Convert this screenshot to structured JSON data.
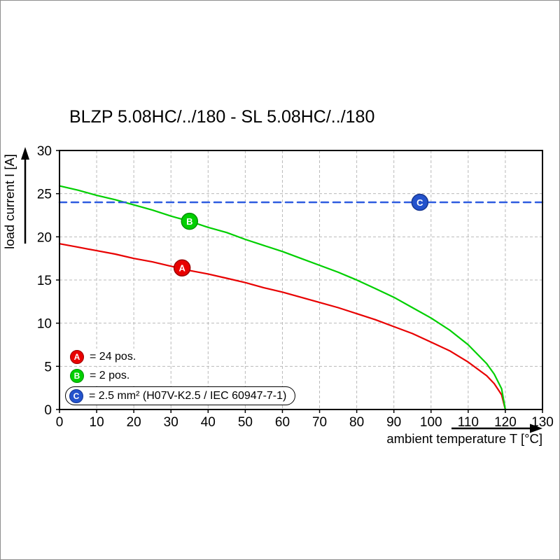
{
  "chart_data": {
    "type": "line",
    "title": "BLZP 5.08HC/../180 - SL 5.08HC/../180",
    "xlabel": "ambient temperature T [°C]",
    "ylabel": "load current I [A]",
    "xlim": [
      0,
      130
    ],
    "ylim": [
      0,
      30
    ],
    "x_ticks": [
      0,
      10,
      20,
      30,
      40,
      50,
      60,
      70,
      80,
      90,
      100,
      110,
      120,
      130
    ],
    "y_ticks": [
      0,
      5,
      10,
      15,
      20,
      25,
      30
    ],
    "grid": "dashed",
    "legend_position": "inside-bottom-left",
    "series": [
      {
        "name": "A",
        "label": "= 24 pos.",
        "color": "#e80000",
        "style": "solid",
        "points": [
          [
            0,
            19.2
          ],
          [
            5,
            18.8
          ],
          [
            10,
            18.4
          ],
          [
            15,
            18.0
          ],
          [
            20,
            17.5
          ],
          [
            25,
            17.1
          ],
          [
            30,
            16.6
          ],
          [
            35,
            16.1
          ],
          [
            40,
            15.7
          ],
          [
            45,
            15.2
          ],
          [
            50,
            14.7
          ],
          [
            55,
            14.1
          ],
          [
            60,
            13.6
          ],
          [
            65,
            13.0
          ],
          [
            70,
            12.4
          ],
          [
            75,
            11.8
          ],
          [
            80,
            11.1
          ],
          [
            85,
            10.4
          ],
          [
            90,
            9.6
          ],
          [
            95,
            8.8
          ],
          [
            100,
            7.8
          ],
          [
            105,
            6.8
          ],
          [
            110,
            5.5
          ],
          [
            115,
            3.9
          ],
          [
            117,
            3.0
          ],
          [
            119,
            1.7
          ],
          [
            120,
            0
          ]
        ]
      },
      {
        "name": "B",
        "label": "= 2 pos.",
        "color": "#00cf00",
        "style": "solid",
        "points": [
          [
            0,
            25.9
          ],
          [
            5,
            25.4
          ],
          [
            10,
            24.8
          ],
          [
            15,
            24.3
          ],
          [
            20,
            23.7
          ],
          [
            25,
            23.1
          ],
          [
            30,
            22.4
          ],
          [
            35,
            21.8
          ],
          [
            40,
            21.1
          ],
          [
            45,
            20.5
          ],
          [
            50,
            19.7
          ],
          [
            55,
            19.0
          ],
          [
            60,
            18.3
          ],
          [
            65,
            17.5
          ],
          [
            70,
            16.7
          ],
          [
            75,
            15.9
          ],
          [
            80,
            15.0
          ],
          [
            85,
            14.0
          ],
          [
            90,
            13.0
          ],
          [
            95,
            11.8
          ],
          [
            100,
            10.6
          ],
          [
            105,
            9.2
          ],
          [
            110,
            7.5
          ],
          [
            115,
            5.3
          ],
          [
            117,
            4.1
          ],
          [
            119,
            2.4
          ],
          [
            120,
            0
          ]
        ]
      },
      {
        "name": "C",
        "label": "= 2.5 mm² (H07V-K2.5 / IEC 60947-7-1)",
        "color": "#2e5ce0",
        "style": "dashed",
        "points": [
          [
            0,
            24
          ],
          [
            130,
            24
          ]
        ]
      }
    ],
    "markers": [
      {
        "letter": "A",
        "x": 33,
        "y": 16.4,
        "color": "#e80000",
        "ring": "#9a0000"
      },
      {
        "letter": "B",
        "x": 35,
        "y": 21.8,
        "color": "#00cf00",
        "ring": "#009200"
      },
      {
        "letter": "C",
        "x": 97,
        "y": 24,
        "color": "#2453cc",
        "ring": "#16368f"
      }
    ],
    "legend": [
      {
        "letter": "A",
        "color": "#e80000",
        "ring": "#9a0000",
        "text": "= 24 pos.",
        "boxed": false
      },
      {
        "letter": "B",
        "color": "#00cf00",
        "ring": "#009200",
        "text": "= 2 pos.",
        "boxed": false
      },
      {
        "letter": "C",
        "color": "#2453cc",
        "ring": "#16368f",
        "text": "= 2.5 mm² (H07V-K2.5 / IEC 60947-7-1)",
        "boxed": true
      }
    ]
  }
}
